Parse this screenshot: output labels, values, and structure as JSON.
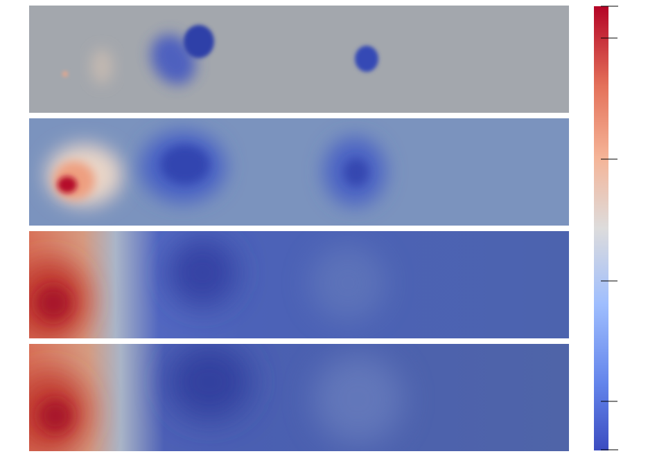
{
  "figure": {
    "panel_count": 4,
    "colormap": "coolwarm",
    "colormap_stops": [
      "#3b4cc0",
      "#7b9ff9",
      "#c0d4f5",
      "#dddcdc",
      "#f2cbb7",
      "#ee8468",
      "#b40426"
    ],
    "colorbar_tick_labels_visible": false,
    "colorbar_major_ticks": 5
  }
}
